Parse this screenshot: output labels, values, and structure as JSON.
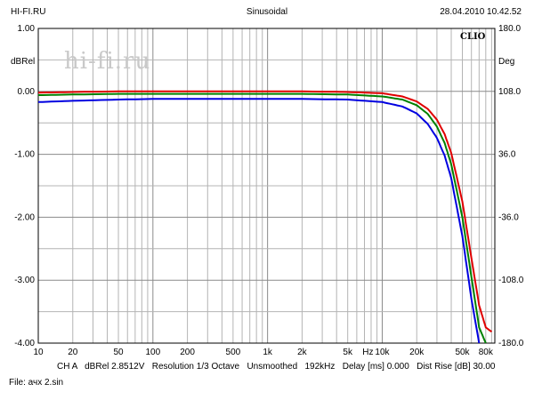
{
  "header": {
    "left": "HI-FI.RU",
    "center": "Sinusoidal",
    "right": "28.04.2010 10.42.52"
  },
  "watermark": "hi-fi.ru",
  "brand": "CLIO",
  "footer": {
    "line1": "CH A   dBRel 2.8512V   Resolution 1/3 Octave   Unsmoothed   192kHz   Delay [ms] 0.000   Dist Rise [dB] 30.00",
    "line2": "File: ачх 2.sin"
  },
  "chart_data": {
    "type": "line",
    "title": "Sinusoidal",
    "xscale": "log",
    "xlim": [
      10,
      96000
    ],
    "ylim": [
      -4.0,
      1.0
    ],
    "y2lim": [
      -180.0,
      180.0
    ],
    "ylabel": "dBRel",
    "y2label": "Deg",
    "grid": true,
    "x_ticks": [
      {
        "value": 10,
        "label": "10"
      },
      {
        "value": 20,
        "label": "20"
      },
      {
        "value": 50,
        "label": "50"
      },
      {
        "value": 100,
        "label": "100"
      },
      {
        "value": 200,
        "label": "200"
      },
      {
        "value": 500,
        "label": "500"
      },
      {
        "value": 1000,
        "label": "1k"
      },
      {
        "value": 2000,
        "label": "2k"
      },
      {
        "value": 5000,
        "label": "5k"
      },
      {
        "value": 7500,
        "label": "Hz"
      },
      {
        "value": 10000,
        "label": "10k"
      },
      {
        "value": 20000,
        "label": "20k"
      },
      {
        "value": 50000,
        "label": "50k"
      },
      {
        "value": 80000,
        "label": "80k"
      }
    ],
    "y_ticks": [
      {
        "value": 1.0,
        "label": "1.00"
      },
      {
        "value": 0.0,
        "label": "0.00"
      },
      {
        "value": -1.0,
        "label": "-1.00"
      },
      {
        "value": -2.0,
        "label": "-2.00"
      },
      {
        "value": -3.0,
        "label": "-3.00"
      },
      {
        "value": -4.0,
        "label": "-4.00"
      }
    ],
    "y2_ticks": [
      {
        "value": 180.0,
        "label": "180.0"
      },
      {
        "value": 108.0,
        "label": "108.0"
      },
      {
        "value": 36.0,
        "label": "36.0"
      },
      {
        "value": -36.0,
        "label": "-36.0"
      },
      {
        "value": -108.0,
        "label": "-108.0"
      },
      {
        "value": -180.0,
        "label": "-180.0"
      }
    ],
    "series": [
      {
        "color": "#e00000",
        "x": [
          10,
          20,
          50,
          100,
          200,
          500,
          1000,
          2000,
          5000,
          10000,
          15000,
          20000,
          25000,
          30000,
          35000,
          40000,
          50000,
          60000,
          70000,
          80000,
          90000
        ],
        "y": [
          -0.02,
          -0.01,
          0.0,
          0.0,
          0.0,
          0.0,
          0.0,
          0.0,
          -0.01,
          -0.03,
          -0.08,
          -0.16,
          -0.28,
          -0.45,
          -0.68,
          -0.98,
          -1.75,
          -2.65,
          -3.4,
          -3.75,
          -3.82
        ]
      },
      {
        "color": "#008000",
        "x": [
          10,
          20,
          50,
          100,
          200,
          500,
          1000,
          2000,
          5000,
          10000,
          15000,
          20000,
          25000,
          30000,
          35000,
          40000,
          50000,
          60000,
          70000,
          80000
        ],
        "y": [
          -0.06,
          -0.05,
          -0.04,
          -0.04,
          -0.04,
          -0.04,
          -0.04,
          -0.04,
          -0.05,
          -0.08,
          -0.13,
          -0.22,
          -0.36,
          -0.56,
          -0.82,
          -1.16,
          -2.0,
          -2.95,
          -3.75,
          -4.0
        ]
      },
      {
        "color": "#0000e0",
        "x": [
          10,
          20,
          50,
          100,
          200,
          500,
          1000,
          2000,
          5000,
          10000,
          15000,
          20000,
          25000,
          30000,
          35000,
          40000,
          50000,
          60000,
          70000
        ],
        "y": [
          -0.17,
          -0.15,
          -0.13,
          -0.12,
          -0.12,
          -0.12,
          -0.12,
          -0.12,
          -0.13,
          -0.17,
          -0.24,
          -0.35,
          -0.52,
          -0.74,
          -1.02,
          -1.38,
          -2.3,
          -3.3,
          -4.0
        ]
      }
    ]
  }
}
